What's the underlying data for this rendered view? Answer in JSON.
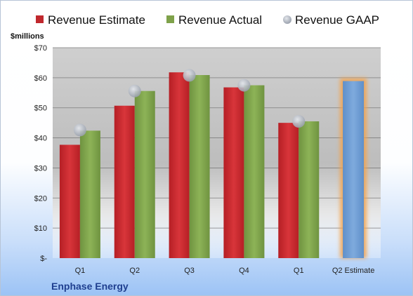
{
  "chart_data": {
    "type": "bar",
    "company": "Enphase Energy",
    "ylabel": "$millions",
    "ylim": [
      0,
      70
    ],
    "yticks": [
      0,
      10,
      20,
      30,
      40,
      50,
      60,
      70
    ],
    "ytick_labels": [
      "$-",
      "$10",
      "$20",
      "$30",
      "$40",
      "$50",
      "$60",
      "$70"
    ],
    "categories": [
      "Q1",
      "Q2",
      "Q3",
      "Q4",
      "Q1",
      "Q2 Estimate"
    ],
    "legend_position": "top",
    "grid": true,
    "series": [
      {
        "name": "Revenue Estimate",
        "type": "bar",
        "color": "#c0282d",
        "values": [
          37.7,
          50.7,
          61.8,
          56.8,
          45.0,
          null
        ]
      },
      {
        "name": "Revenue Actual",
        "type": "bar",
        "color": "#7fa24a",
        "values": [
          42.4,
          55.6,
          60.9,
          57.5,
          45.5,
          null
        ]
      },
      {
        "name": "Revenue GAAP",
        "type": "scatter",
        "color": "#b8bec8",
        "values": [
          42.6,
          55.6,
          60.8,
          57.5,
          45.5,
          null
        ]
      },
      {
        "name": "Q2 Estimate",
        "type": "bar",
        "color": "#6c9bd1",
        "highlight": "#f4a24a",
        "values": [
          null,
          null,
          null,
          null,
          null,
          58.9
        ]
      }
    ]
  }
}
